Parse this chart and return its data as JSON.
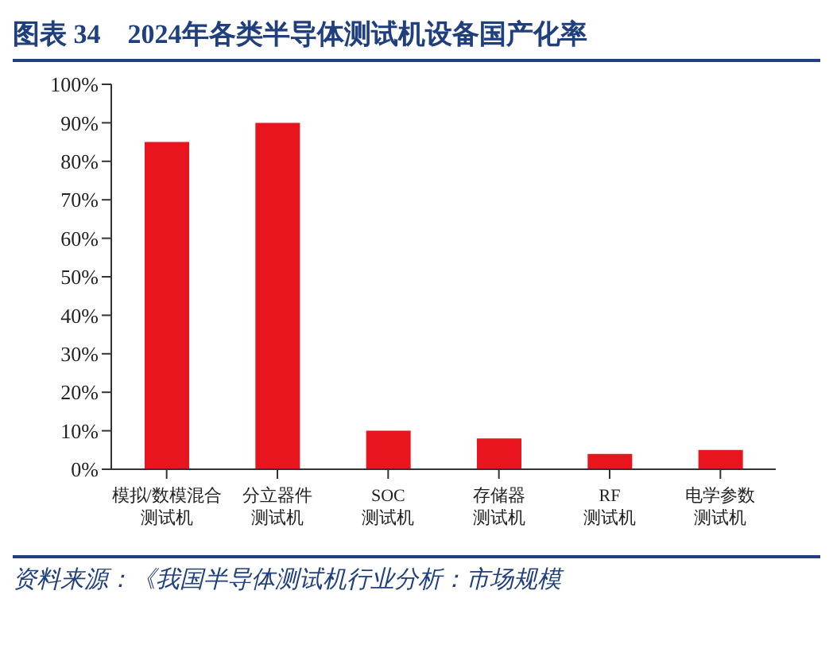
{
  "chart_data": {
    "type": "bar",
    "title": "图表 34　2024年各类半导体测试机设备国产化率",
    "categories": [
      "模拟/数模混合测试机",
      "分立器件测试机",
      "SOC测试机",
      "存储器测试机",
      "RF测试机",
      "电学参数测试机"
    ],
    "values": [
      85,
      90,
      10,
      8,
      4,
      5
    ],
    "color": "#e8141e",
    "ylim": [
      0,
      100
    ],
    "yticks": [
      {
        "value": 0,
        "label": "0%"
      },
      {
        "value": 10,
        "label": "10%"
      },
      {
        "value": 20,
        "label": "20%"
      },
      {
        "value": 30,
        "label": "30%"
      },
      {
        "value": 40,
        "label": "40%"
      },
      {
        "value": 50,
        "label": "50%"
      },
      {
        "value": 60,
        "label": "60%"
      },
      {
        "value": 70,
        "label": "70%"
      },
      {
        "value": 80,
        "label": "80%"
      },
      {
        "value": 90,
        "label": "90%"
      },
      {
        "value": 100,
        "label": "100%"
      }
    ],
    "grid": false,
    "annotations": [
      "资料来源：《我国半导体测试机行业分析：市场规模"
    ]
  }
}
